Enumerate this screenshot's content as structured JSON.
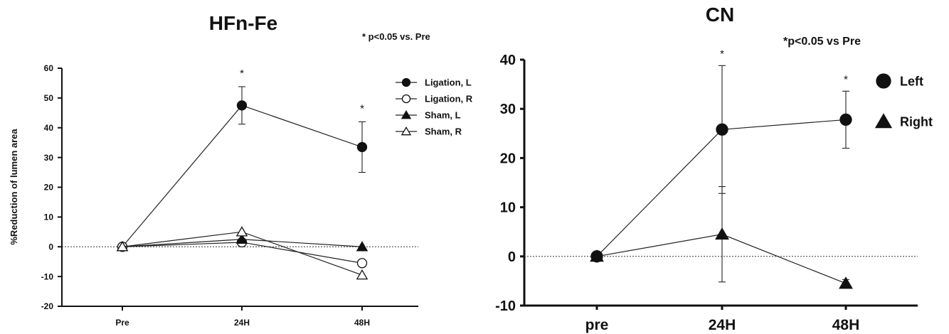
{
  "chart_data": [
    {
      "type": "line",
      "title": "HFn-Fe",
      "annotation": "* p<0.05 vs. Pre",
      "xlabel": "",
      "ylabel": "%Reduction of lumen area",
      "categories": [
        "Pre",
        "24H",
        "48H"
      ],
      "ylim": [
        -20,
        60
      ],
      "yticks": [
        -20,
        -10,
        0,
        10,
        20,
        30,
        40,
        50,
        60
      ],
      "grid": false,
      "reference_line": 0,
      "legend_position": "top-right",
      "significance_marks": [
        {
          "category": "24H",
          "text": "*"
        },
        {
          "category": "48H",
          "text": "*"
        }
      ],
      "series": [
        {
          "name": "Ligation, L",
          "marker": "circle",
          "filled": true,
          "values": [
            0,
            47.5,
            33.5
          ],
          "error": [
            0,
            6.3,
            8.5
          ]
        },
        {
          "name": "Ligation, R",
          "marker": "circle",
          "filled": false,
          "values": [
            0,
            1.5,
            -5.5
          ],
          "error": [
            0,
            0,
            0
          ]
        },
        {
          "name": "Sham, L",
          "marker": "triangle",
          "filled": true,
          "values": [
            0,
            2.5,
            0
          ],
          "error": [
            0,
            0,
            0
          ]
        },
        {
          "name": "Sham, R",
          "marker": "triangle",
          "filled": false,
          "values": [
            0,
            5,
            -9.5
          ],
          "error": [
            0,
            0,
            0
          ]
        }
      ]
    },
    {
      "type": "line",
      "title": "CN",
      "annotation": "*p<0.05 vs Pre",
      "xlabel": "",
      "ylabel": "",
      "categories": [
        "pre",
        "24H",
        "48H"
      ],
      "ylim": [
        -10,
        40
      ],
      "yticks": [
        -10,
        0,
        10,
        20,
        30,
        40
      ],
      "grid": false,
      "reference_line": 0,
      "legend_position": "right",
      "significance_marks": [
        {
          "category": "24H",
          "text": "*"
        },
        {
          "category": "48H",
          "text": "*"
        }
      ],
      "series": [
        {
          "name": "Left",
          "marker": "circle",
          "filled": true,
          "values": [
            0,
            25.8,
            27.8
          ],
          "error": [
            0,
            13,
            5.8
          ]
        },
        {
          "name": "Right",
          "marker": "triangle",
          "filled": true,
          "values": [
            0,
            4.5,
            -5.5
          ],
          "error": [
            0,
            9.7,
            0.8
          ]
        }
      ]
    }
  ]
}
